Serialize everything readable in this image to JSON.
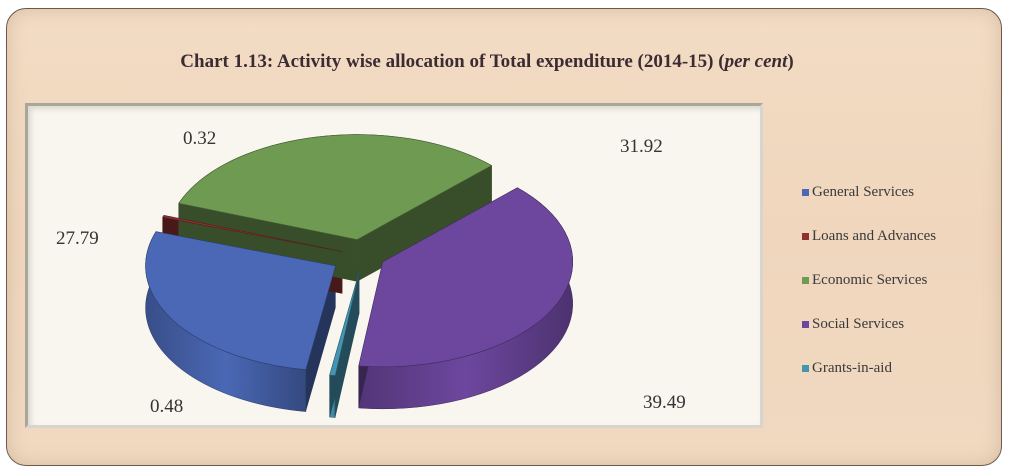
{
  "chart_data": {
    "type": "pie",
    "title_main": "Chart 1.13: Activity wise allocation of Total expenditure (2014-15) (",
    "title_unit": "per cent",
    "title_close": ")",
    "categories": [
      "General Services",
      "Loans and Advances",
      "Economic Services",
      "Social Services",
      "Grants-in-aid"
    ],
    "values": [
      27.79,
      0.32,
      31.92,
      39.49,
      0.48
    ],
    "labels": [
      "27.79",
      "0.32",
      "31.92",
      "39.49",
      "0.48"
    ],
    "colors": [
      "#4a68b5",
      "#8e3132",
      "#6f9a52",
      "#6d479e",
      "#4595b2"
    ],
    "exploded": true,
    "three_d": true,
    "legend_position": "right"
  }
}
